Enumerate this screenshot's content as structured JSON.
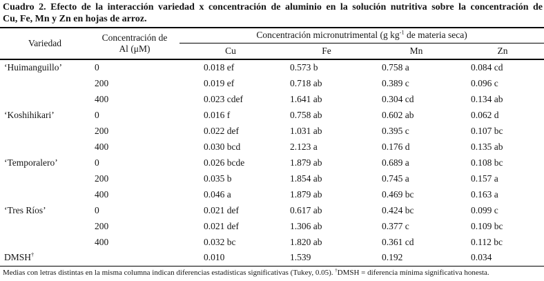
{
  "title": {
    "line1": "Cuadro 2. Efecto de la interacción variedad x concentración de aluminio en la solución nutritiva sobre la concentración de",
    "line2": "Cu, Fe, Mn y Zn en hojas de arroz."
  },
  "table": {
    "headers": {
      "variety": "Variedad",
      "al_line1": "Concentración de",
      "al_line2": "Al (μM)",
      "micro_prefix": "Concentración micronutrimental (g kg",
      "micro_sup": "-1",
      "micro_suffix": " de materia seca)",
      "cu": "Cu",
      "fe": "Fe",
      "mn": "Mn",
      "zn": "Zn"
    },
    "rows": [
      {
        "variety": "‘Huimanguillo’",
        "al": "0",
        "cu": "0.018 ef",
        "fe": "0.573 b",
        "mn": "0.758 a",
        "zn": "0.084 cd"
      },
      {
        "variety": "",
        "al": "200",
        "cu": "0.019 ef",
        "fe": "0.718 ab",
        "mn": "0.389 c",
        "zn": "0.096 c"
      },
      {
        "variety": "",
        "al": "400",
        "cu": "0.023 cdef",
        "fe": "1.641 ab",
        "mn": "0.304 cd",
        "zn": "0.134 ab"
      },
      {
        "variety": "‘Koshihikari’",
        "al": "0",
        "cu": "0.016 f",
        "fe": "0.758 ab",
        "mn": "0.602 ab",
        "zn": "0.062 d"
      },
      {
        "variety": "",
        "al": "200",
        "cu": "0.022 def",
        "fe": "1.031 ab",
        "mn": "0.395 c",
        "zn": "0.107 bc"
      },
      {
        "variety": "",
        "al": "400",
        "cu": "0.030 bcd",
        "fe": "2.123 a",
        "mn": "0.176 d",
        "zn": "0.135 ab"
      },
      {
        "variety": "‘Temporalero’",
        "al": "0",
        "cu": "0.026 bcde",
        "fe": "1.879 ab",
        "mn": "0.689 a",
        "zn": "0.108 bc"
      },
      {
        "variety": "",
        "al": "200",
        "cu": "0.035 b",
        "fe": "1.854 ab",
        "mn": "0.745 a",
        "zn": "0.157 a"
      },
      {
        "variety": "",
        "al": "400",
        "cu": "0.046 a",
        "fe": "1.879 ab",
        "mn": "0.469 bc",
        "zn": "0.163 a"
      },
      {
        "variety": "‘Tres Ríos’",
        "al": "0",
        "cu": "0.021 def",
        "fe": "0.617 ab",
        "mn": "0.424 bc",
        "zn": "0.099 c"
      },
      {
        "variety": "",
        "al": "200",
        "cu": "0.021 def",
        "fe": "1.306 ab",
        "mn": "0.377 c",
        "zn": "0.109 bc"
      },
      {
        "variety": "",
        "al": "400",
        "cu": "0.032 bc",
        "fe": "1.820 ab",
        "mn": "0.361 cd",
        "zn": "0.112 bc"
      },
      {
        "variety": "DMSH",
        "variety_sup": "†",
        "al": "",
        "cu": "0.010",
        "fe": "1.539",
        "mn": "0.192",
        "zn": "0.034"
      }
    ]
  },
  "footnote": {
    "part1": "Medias con letras distintas en la misma columna indican diferencias estadísticas significativas (Tukey, 0.05). ",
    "dagger": "†",
    "part2": "DMSH = diferencia mínima significativa honesta."
  }
}
